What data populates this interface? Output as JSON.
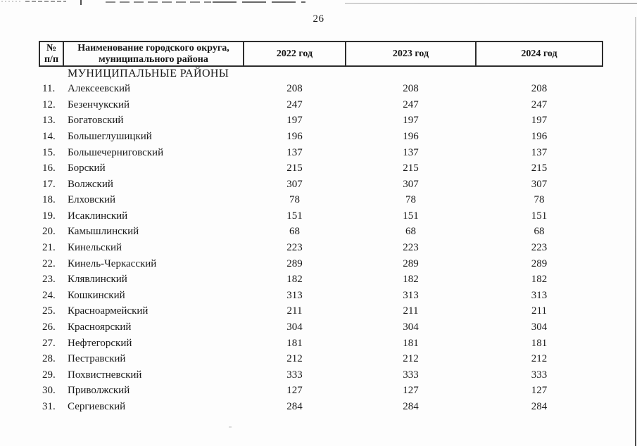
{
  "page": {
    "number": "26"
  },
  "table": {
    "header": {
      "num_line1": "№",
      "num_line2": "п/п",
      "name": "Наименование городского округа, муниципального района",
      "year_2022": "2022 год",
      "year_2023": "2023 год",
      "year_2024": "2024 год"
    },
    "section_label": "МУНИЦИПАЛЬНЫЕ РАЙОНЫ",
    "rows": [
      {
        "num": "11.",
        "name": "Алексеевский",
        "y2022": "208",
        "y2023": "208",
        "y2024": "208"
      },
      {
        "num": "12.",
        "name": "Безенчукский",
        "y2022": "247",
        "y2023": "247",
        "y2024": "247"
      },
      {
        "num": "13.",
        "name": "Богатовский",
        "y2022": "197",
        "y2023": "197",
        "y2024": "197"
      },
      {
        "num": "14.",
        "name": "Большеглушицкий",
        "y2022": "196",
        "y2023": "196",
        "y2024": "196"
      },
      {
        "num": "15.",
        "name": "Большечерниговский",
        "y2022": "137",
        "y2023": "137",
        "y2024": "137"
      },
      {
        "num": "16.",
        "name": "Борский",
        "y2022": "215",
        "y2023": "215",
        "y2024": "215"
      },
      {
        "num": "17.",
        "name": "Волжский",
        "y2022": "307",
        "y2023": "307",
        "y2024": "307"
      },
      {
        "num": "18.",
        "name": "Елховский",
        "y2022": "78",
        "y2023": "78",
        "y2024": "78"
      },
      {
        "num": "19.",
        "name": "Исаклинский",
        "y2022": "151",
        "y2023": "151",
        "y2024": "151"
      },
      {
        "num": "20.",
        "name": "Камышлинский",
        "y2022": "68",
        "y2023": "68",
        "y2024": "68"
      },
      {
        "num": "21.",
        "name": "Кинельский",
        "y2022": "223",
        "y2023": "223",
        "y2024": "223"
      },
      {
        "num": "22.",
        "name": "Кинель-Черкасский",
        "y2022": "289",
        "y2023": "289",
        "y2024": "289"
      },
      {
        "num": "23.",
        "name": "Клявлинский",
        "y2022": "182",
        "y2023": "182",
        "y2024": "182"
      },
      {
        "num": "24.",
        "name": "Кошкинский",
        "y2022": "313",
        "y2023": "313",
        "y2024": "313"
      },
      {
        "num": "25.",
        "name": "Красноармейский",
        "y2022": "211",
        "y2023": "211",
        "y2024": "211"
      },
      {
        "num": "26.",
        "name": "Красноярский",
        "y2022": "304",
        "y2023": "304",
        "y2024": "304"
      },
      {
        "num": "27.",
        "name": "Нефтегорский",
        "y2022": "181",
        "y2023": "181",
        "y2024": "181"
      },
      {
        "num": "28.",
        "name": "Пестравский",
        "y2022": "212",
        "y2023": "212",
        "y2024": "212"
      },
      {
        "num": "29.",
        "name": "Похвистневский",
        "y2022": "333",
        "y2023": "333",
        "y2024": "333"
      },
      {
        "num": "30.",
        "name": "Приволжский",
        "y2022": "127",
        "y2023": "127",
        "y2024": "127"
      },
      {
        "num": "31.",
        "name": "Сергиевский",
        "y2022": "284",
        "y2023": "284",
        "y2024": "284"
      }
    ]
  }
}
